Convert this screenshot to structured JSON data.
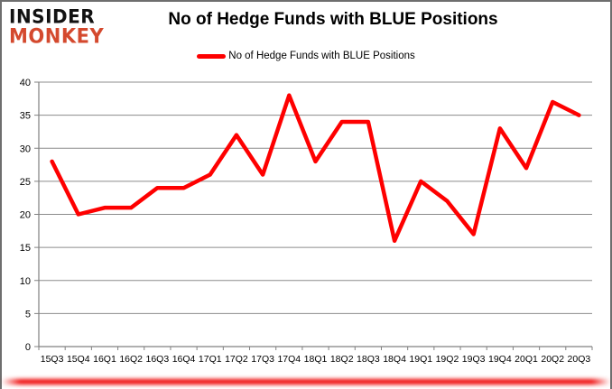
{
  "branding": {
    "line1": "INSIDER",
    "line2": "MONKEY",
    "brand_red": "#d4492e"
  },
  "header": {
    "title": "No of Hedge Funds with BLUE Positions"
  },
  "legend": {
    "label": "No of Hedge Funds with BLUE Positions",
    "line_color": "#fe0000"
  },
  "chart_data": {
    "type": "line",
    "title": "No of Hedge Funds with BLUE Positions",
    "categories": [
      "15Q3",
      "15Q4",
      "16Q1",
      "16Q2",
      "16Q3",
      "16Q4",
      "17Q1",
      "17Q2",
      "17Q3",
      "17Q4",
      "18Q1",
      "18Q2",
      "18Q3",
      "18Q4",
      "19Q1",
      "19Q2",
      "19Q3",
      "19Q4",
      "20Q1",
      "20Q2",
      "20Q3"
    ],
    "series": [
      {
        "name": "No of Hedge Funds with BLUE Positions",
        "color": "#fe0000",
        "values": [
          28,
          20,
          21,
          21,
          24,
          24,
          26,
          32,
          26,
          38,
          28,
          34,
          34,
          16,
          25,
          22,
          17,
          33,
          27,
          37,
          35
        ]
      }
    ],
    "xlabel": "",
    "ylabel": "",
    "ylim": [
      0,
      40
    ],
    "ytick_step": 5,
    "y_tick_labels": [
      "0",
      "5",
      "10",
      "15",
      "20",
      "25",
      "30",
      "35",
      "40"
    ],
    "grid": true,
    "legend_position": "top",
    "gridline_color": "#8c8c8c",
    "axis_color": "#808080",
    "tick_label_color": "#000000"
  },
  "frame": {
    "border_color": "#6e6e6e",
    "bottom_glow_color": "#ee0000",
    "background": "#ffffff"
  }
}
